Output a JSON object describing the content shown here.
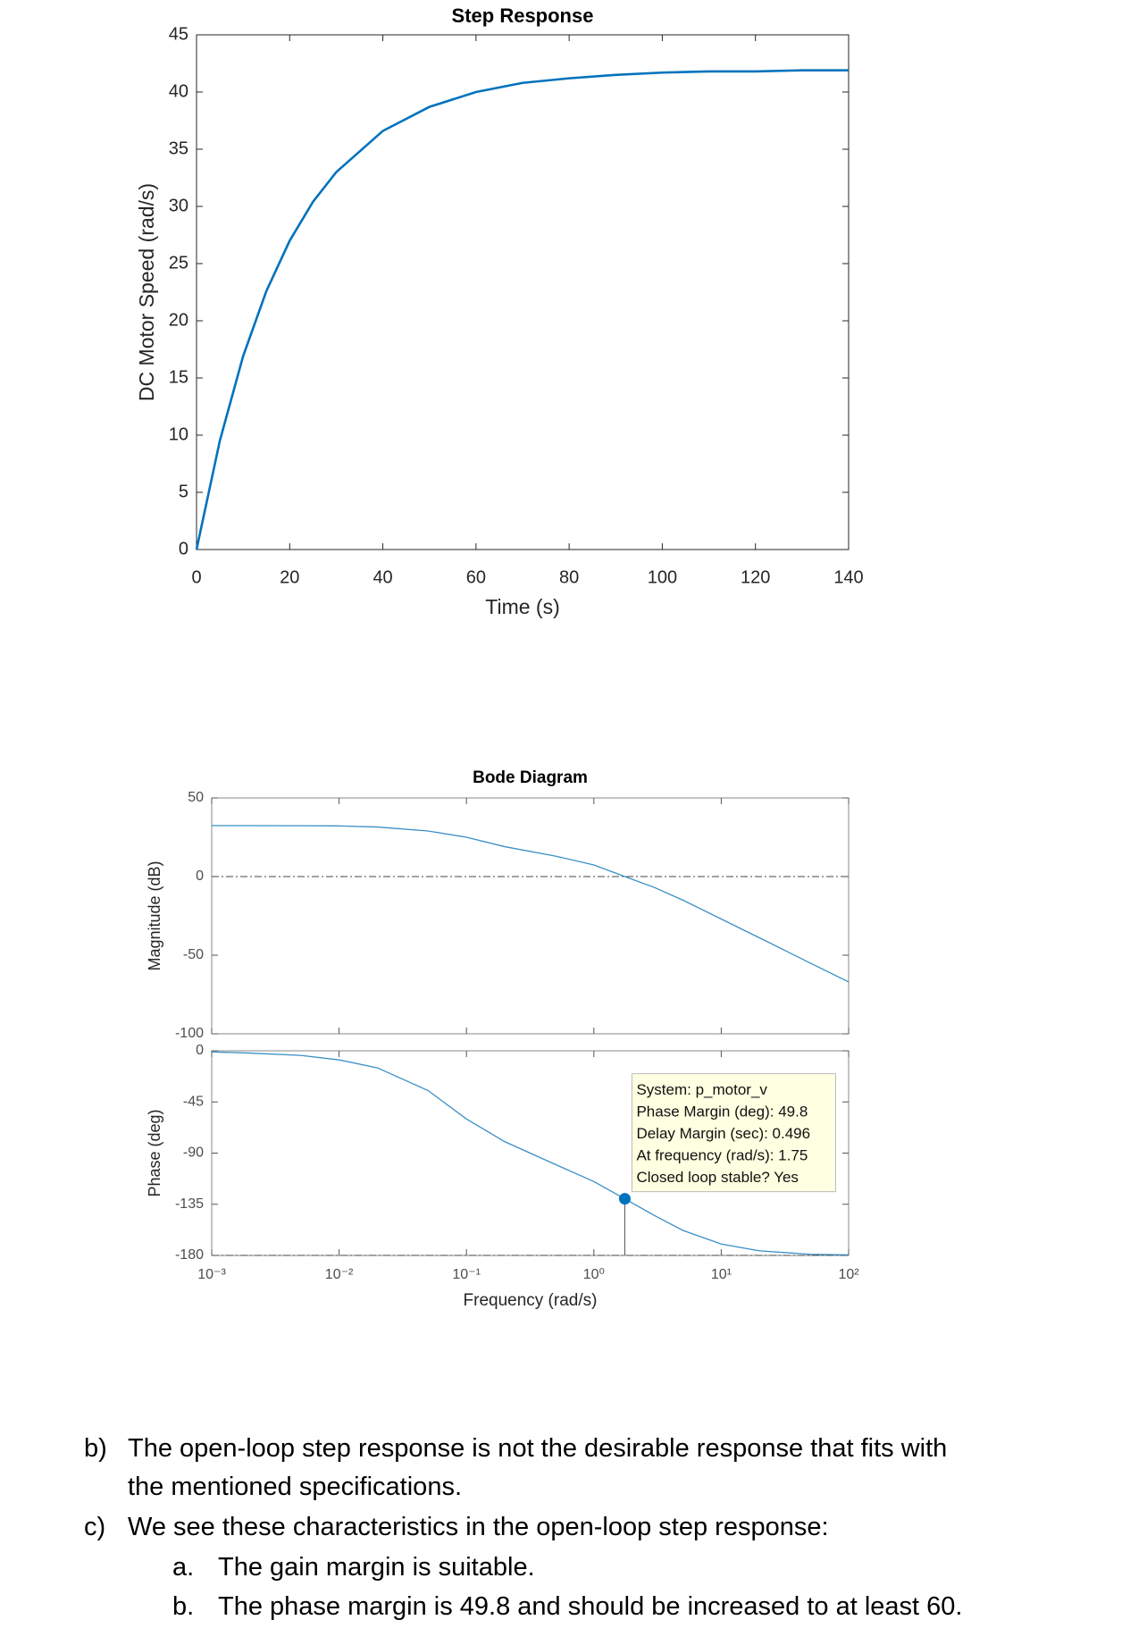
{
  "chart_data": [
    {
      "type": "line",
      "title": "Step Response",
      "xlabel": "Time (s)",
      "ylabel": "DC Motor Speed (rad/s)",
      "x": [
        0,
        5,
        10,
        15,
        20,
        25,
        30,
        40,
        50,
        60,
        70,
        80,
        90,
        100,
        110,
        120,
        130,
        140
      ],
      "series": [
        {
          "color": "#0072bd",
          "values": [
            0,
            9.5,
            16.9,
            22.6,
            27.0,
            30.4,
            33.0,
            36.6,
            38.7,
            40.0,
            40.8,
            41.2,
            41.5,
            41.7,
            41.8,
            41.8,
            41.9,
            41.9
          ]
        }
      ],
      "xlim": [
        0,
        140
      ],
      "ylim": [
        0,
        45
      ],
      "xticks": [
        0,
        20,
        40,
        60,
        80,
        100,
        120,
        140
      ],
      "yticks": [
        0,
        5,
        10,
        15,
        20,
        25,
        30,
        35,
        40,
        45
      ]
    },
    {
      "type": "line",
      "title": "Bode Diagram",
      "ylabel": "Magnitude (dB)",
      "xscale": "log",
      "x": [
        0.001,
        0.002,
        0.005,
        0.01,
        0.02,
        0.05,
        0.1,
        0.2,
        0.5,
        1,
        1.75,
        3,
        5,
        10,
        20,
        50,
        100
      ],
      "series": [
        {
          "color": "#3b8ec6",
          "values": [
            32.4,
            32.4,
            32.3,
            32.2,
            31.5,
            29,
            25,
            19,
            13,
            7.4,
            0,
            -7,
            -15,
            -27,
            -39,
            -55,
            -67
          ]
        }
      ],
      "xlim": [
        0.001,
        100
      ],
      "ylim": [
        -100,
        50
      ],
      "yticks": [
        -100,
        -50,
        0,
        50
      ],
      "ref_line": 0
    },
    {
      "type": "line",
      "ylabel": "Phase (deg)",
      "xlabel": "Frequency (rad/s)",
      "xscale": "log",
      "x": [
        0.001,
        0.002,
        0.005,
        0.01,
        0.02,
        0.05,
        0.1,
        0.2,
        0.5,
        1,
        1.75,
        3,
        5,
        10,
        20,
        50,
        100
      ],
      "series": [
        {
          "color": "#3b8ec6",
          "values": [
            -1,
            -2,
            -4,
            -8,
            -15,
            -35,
            -60,
            -80,
            -100,
            -115,
            -130.2,
            -145,
            -158,
            -170,
            -176,
            -179,
            -179.5
          ]
        }
      ],
      "xlim": [
        0.001,
        100
      ],
      "ylim": [
        -180,
        0
      ],
      "xticks": [
        {
          "value": 0.001,
          "label": "10⁻³"
        },
        {
          "value": 0.01,
          "label": "10⁻²"
        },
        {
          "value": 0.1,
          "label": "10⁻¹"
        },
        {
          "value": 1,
          "label": "10⁰"
        },
        {
          "value": 10,
          "label": "10¹"
        },
        {
          "value": 100,
          "label": "10²"
        }
      ],
      "yticks": [
        -180,
        -135,
        -90,
        -45,
        0
      ],
      "ref_line": -180,
      "datatip": {
        "x": 1.75,
        "y": -130.2,
        "lines": [
          "System: p_motor_v",
          "Phase Margin (deg): 49.8",
          "Delay Margin (sec): 0.496",
          "At frequency (rad/s): 1.75",
          "Closed loop stable? Yes"
        ]
      }
    }
  ],
  "text": {
    "items": [
      {
        "marker": "b)",
        "lines": [
          "The open-loop step response is not the desirable response that fits with",
          "the mentioned specifications."
        ]
      },
      {
        "marker": "c)",
        "lines": [
          "We see these characteristics in the open-loop step response:"
        ],
        "subitems": [
          {
            "marker": "a.",
            "text": "The gain margin is suitable."
          },
          {
            "marker": "b.",
            "text": "The phase margin is 49.8 and should be increased to at least 60."
          }
        ]
      }
    ]
  }
}
